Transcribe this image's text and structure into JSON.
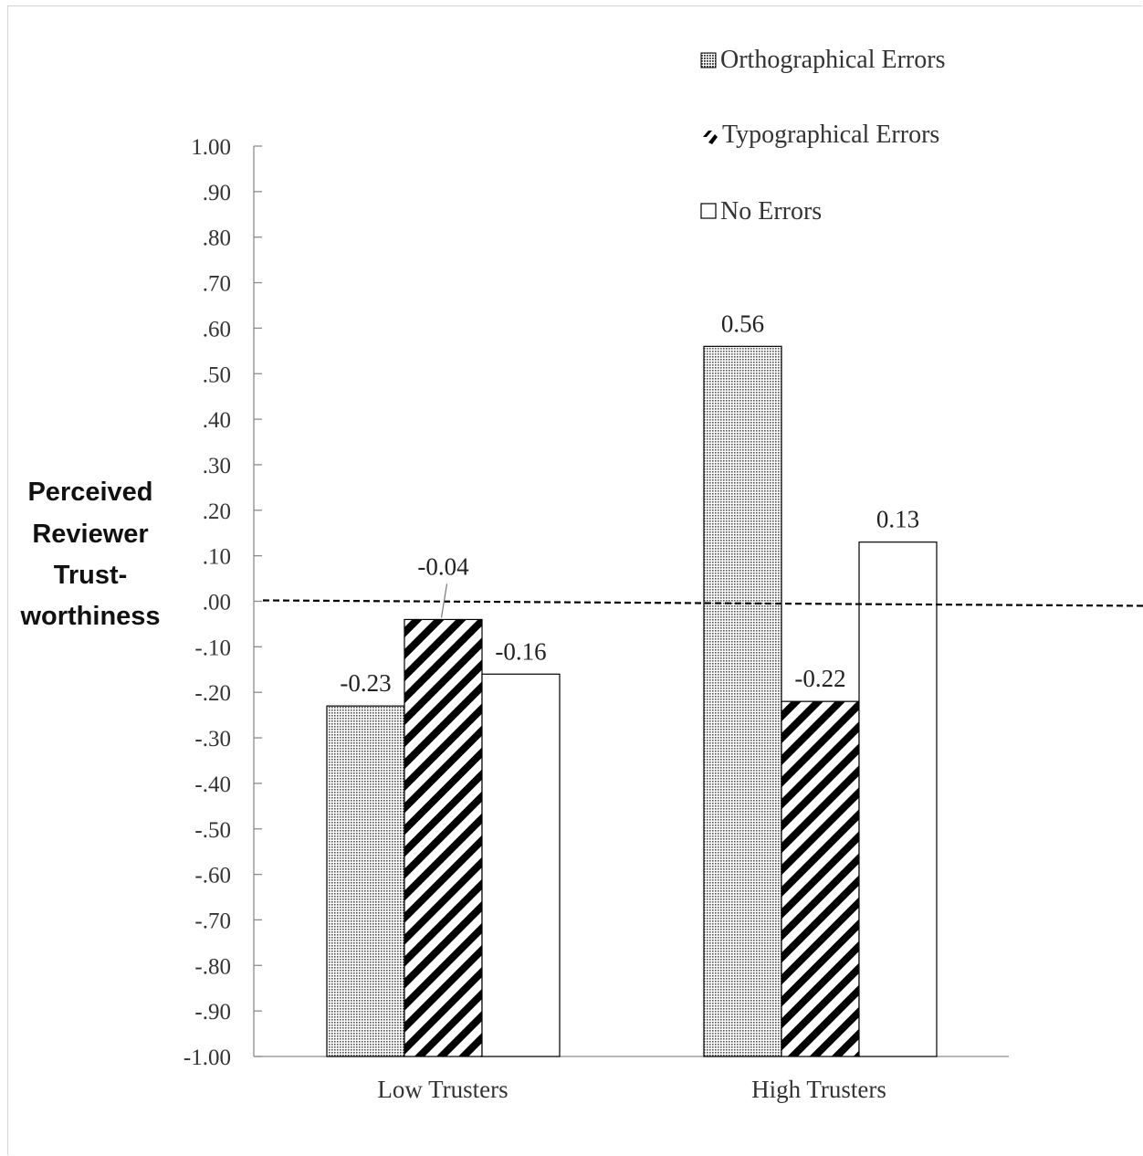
{
  "chart_data": {
    "type": "bar",
    "categories": [
      "Low Trusters",
      "High Trusters"
    ],
    "series": [
      {
        "name": "Orthographical Errors",
        "values": [
          -0.23,
          0.56
        ],
        "pattern": "dots"
      },
      {
        "name": "Typographical Errors",
        "values": [
          -0.04,
          -0.22
        ],
        "pattern": "stripes"
      },
      {
        "name": "No Errors",
        "values": [
          -0.16,
          0.13
        ],
        "pattern": "none"
      }
    ],
    "data_labels": [
      [
        "-0.23",
        "0.56"
      ],
      [
        "-0.04",
        "-0.22"
      ],
      [
        "-0.16",
        "0.13"
      ]
    ],
    "ylabel_lines": [
      "Perceived",
      "Reviewer",
      "Trust-",
      "worthiness"
    ],
    "xlabel": "",
    "ylim": [
      -1.0,
      1.0
    ],
    "ytick_step": 0.1,
    "ytick_labels": [
      "1.00",
      ".90",
      ".80",
      ".70",
      ".60",
      ".50",
      ".40",
      ".30",
      ".20",
      ".10",
      ".00",
      "-.10",
      "-.20",
      "-.30",
      "-.40",
      "-.50",
      "-.60",
      "-.70",
      "-.80",
      "-.90",
      "-1.00"
    ],
    "reference_line": {
      "value": 0.0,
      "style": "dashed"
    },
    "legend_position": "top-right",
    "grid": false,
    "colors": {
      "bar_outline": "#000000",
      "dot_pattern": "#555555",
      "stripe": "#000000",
      "axis": "#8c8c8c",
      "text": "#333333"
    }
  }
}
